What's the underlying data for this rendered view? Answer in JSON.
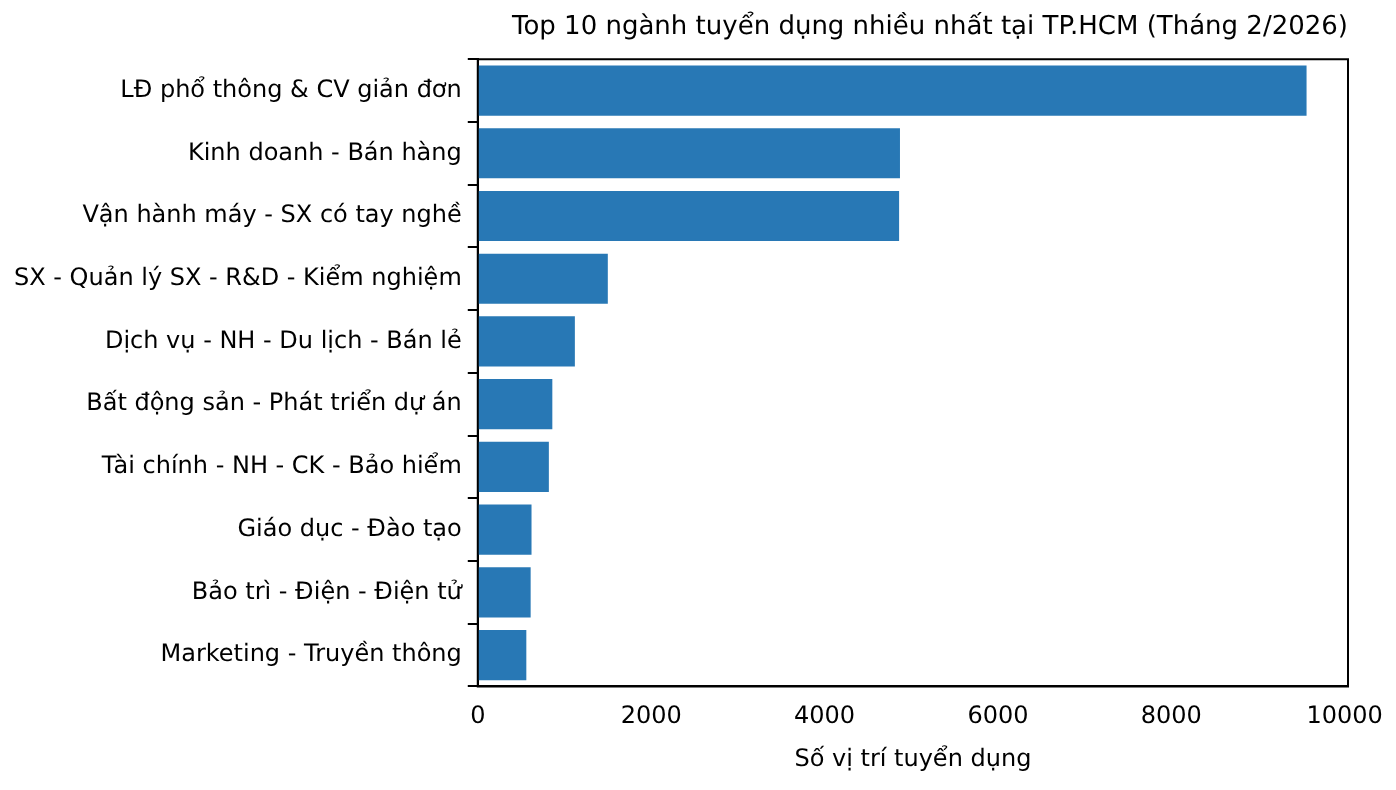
{
  "chart_data": {
    "type": "bar",
    "orientation": "horizontal",
    "title": "Top 10 ngành tuyển dụng nhiều nhất tại TP.HCM (Tháng 2/2026)",
    "xlabel": "Số vị trí tuyển dụng",
    "categories": [
      "LĐ phổ thông & CV giản đơn",
      "Kinh doanh - Bán hàng",
      "Vận hành máy - SX có tay nghề",
      "SX - Quản lý SX - R&D - Kiểm nghiệm",
      "Dịch vụ - NH - Du lịch - Bán lẻ",
      "Bất động sản - Phát triển dự án",
      "Tài chính - NH - CK - Bảo hiểm",
      "Giáo dục - Đào tạo",
      "Bảo trì - Điện - Điện tử",
      "Marketing - Truyền thông"
    ],
    "values": [
      9560,
      4870,
      4860,
      1500,
      1120,
      860,
      820,
      620,
      610,
      560
    ],
    "color": "#2878b5",
    "xlim": [
      0,
      10038
    ],
    "xticks": [
      0,
      2000,
      4000,
      6000,
      8000,
      10000
    ],
    "grid": false,
    "legend": false
  }
}
